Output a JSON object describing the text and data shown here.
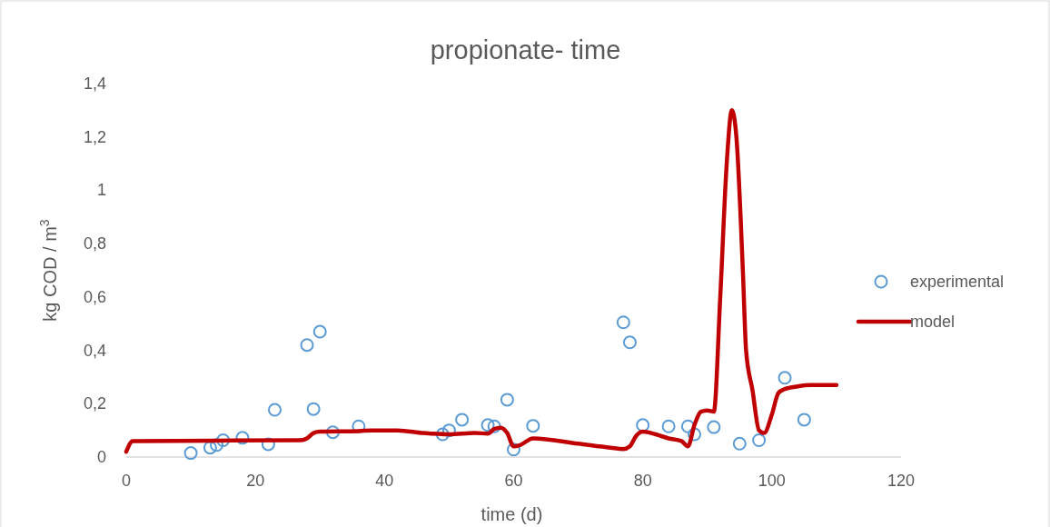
{
  "chart_data": {
    "type": "scatter",
    "title": "propionate- time",
    "xlabel": "time (d)",
    "ylabel": "kg COD / m$^{3}$",
    "xlim": [
      0,
      120
    ],
    "xticks": [
      0,
      20,
      40,
      60,
      80,
      100,
      120
    ],
    "ylim": [
      0,
      1.4
    ],
    "yticks": [
      {
        "value": 0,
        "label": "0"
      },
      {
        "value": 0.2,
        "label": "0,2"
      },
      {
        "value": 0.4,
        "label": "0,4"
      },
      {
        "value": 0.6,
        "label": "0,6"
      },
      {
        "value": 0.8,
        "label": "0,8"
      },
      {
        "value": 1,
        "label": "1"
      },
      {
        "value": 1.2,
        "label": "1,2"
      },
      {
        "value": 1.4,
        "label": "1,4"
      }
    ],
    "grid": false,
    "legend": "right",
    "series": [
      {
        "name": "experimental",
        "marker": "circle",
        "color": "#5b9bd5",
        "x": [
          10,
          13,
          14,
          15,
          18,
          22,
          23,
          28,
          29,
          30,
          32,
          36,
          49,
          50,
          52,
          56,
          57,
          59,
          60,
          63,
          77,
          78,
          80,
          84,
          87,
          88,
          91,
          95,
          98,
          102,
          105
        ],
        "values": [
          0.015,
          0.035,
          0.045,
          0.063,
          0.072,
          0.048,
          0.177,
          0.42,
          0.18,
          0.47,
          0.093,
          0.115,
          0.085,
          0.1,
          0.14,
          0.12,
          0.115,
          0.215,
          0.028,
          0.117,
          0.505,
          0.43,
          0.12,
          0.115,
          0.115,
          0.085,
          0.112,
          0.05,
          0.063,
          0.297,
          0.14
        ]
      },
      {
        "name": "model",
        "type": "line",
        "line_style": "solid",
        "color": "#c00000",
        "x": [
          0,
          1,
          27,
          28,
          29,
          30,
          36,
          38,
          42,
          46,
          50,
          54,
          56,
          57,
          58,
          59,
          60,
          61,
          63,
          70,
          75,
          77,
          78,
          79,
          80,
          82,
          84,
          86,
          87,
          88,
          89,
          90,
          91,
          92,
          93,
          93.8,
          94.5,
          95.5,
          96,
          97,
          98,
          98.8,
          100,
          101,
          102,
          104,
          106,
          110
        ],
        "values": [
          0.02,
          0.06,
          0.063,
          0.07,
          0.09,
          0.095,
          0.097,
          0.1,
          0.1,
          0.09,
          0.085,
          0.09,
          0.088,
          0.105,
          0.11,
          0.09,
          0.04,
          0.045,
          0.07,
          0.05,
          0.035,
          0.03,
          0.04,
          0.08,
          0.095,
          0.085,
          0.07,
          0.06,
          0.04,
          0.12,
          0.17,
          0.175,
          0.17,
          0.6,
          1.1,
          1.3,
          1.2,
          0.7,
          0.4,
          0.25,
          0.1,
          0.09,
          0.16,
          0.24,
          0.255,
          0.265,
          0.27,
          0.27
        ]
      }
    ]
  }
}
